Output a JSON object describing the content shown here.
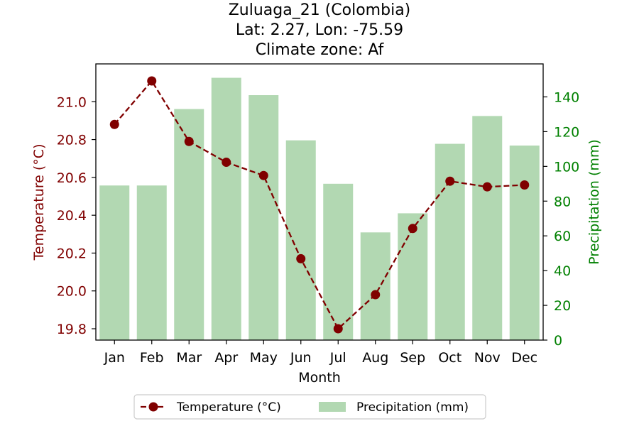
{
  "chart_data": {
    "type": "bar+line",
    "title_lines": [
      "Zuluaga_21 (Colombia)",
      "Lat: 2.27, Lon: -75.59",
      "Climate zone: Af"
    ],
    "categories": [
      "Jan",
      "Feb",
      "Mar",
      "Apr",
      "May",
      "Jun",
      "Jul",
      "Aug",
      "Sep",
      "Oct",
      "Nov",
      "Dec"
    ],
    "xlabel": "Month",
    "temperature": {
      "name": "Temperature (°C)",
      "axis_label": "Temperature (°C)",
      "values": [
        20.88,
        21.11,
        20.79,
        20.68,
        20.61,
        20.17,
        19.8,
        19.98,
        20.33,
        20.58,
        20.55,
        20.56
      ],
      "ylim": [
        19.74,
        21.2
      ],
      "ticks": [
        19.8,
        20.0,
        20.2,
        20.4,
        20.6,
        20.8,
        21.0
      ],
      "tick_labels": [
        "19.8",
        "20.0",
        "20.2",
        "20.4",
        "20.6",
        "20.8",
        "21.0"
      ],
      "color": "#800000",
      "line_style": "dashed",
      "marker": "circle"
    },
    "precipitation": {
      "name": "Precipitation (mm)",
      "axis_label": "Precipitation (mm)",
      "values": [
        89,
        89,
        133,
        151,
        141,
        115,
        90,
        62,
        73,
        113,
        129,
        112
      ],
      "ylim": [
        0,
        159
      ],
      "ticks": [
        0,
        20,
        40,
        60,
        80,
        100,
        120,
        140
      ],
      "tick_labels": [
        "0",
        "20",
        "40",
        "60",
        "80",
        "100",
        "120",
        "140"
      ],
      "color": "#b2d8b2",
      "axis_color": "#008000"
    },
    "legend": {
      "placement": "bottom-center",
      "entries": [
        "Temperature (°C)",
        "Precipitation (mm)"
      ]
    },
    "grid": false
  }
}
